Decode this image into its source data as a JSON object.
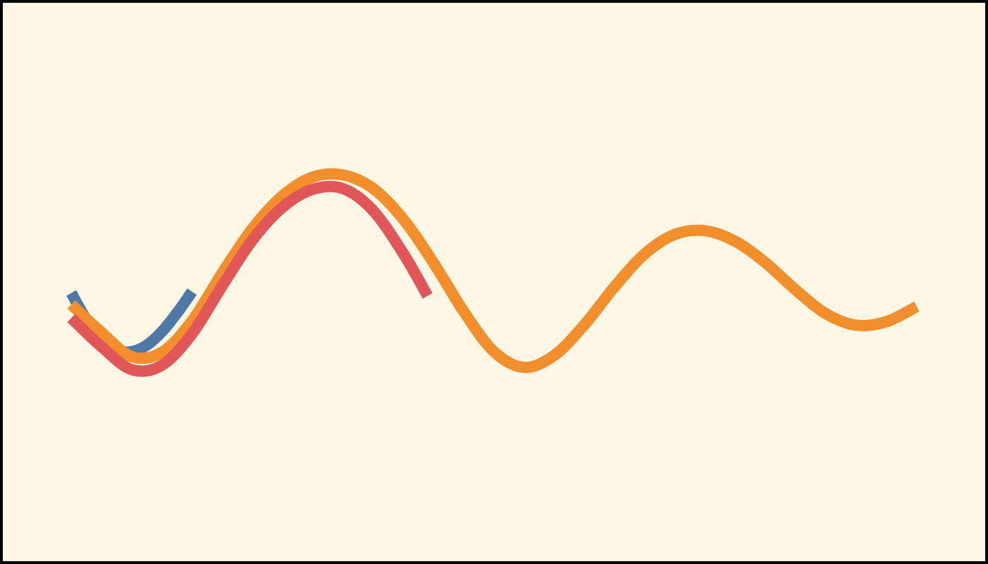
{
  "chart_data": {
    "type": "line",
    "background_color": "#fff7e6",
    "frame_color": "#000000",
    "grid": false,
    "legend": "none",
    "series": [
      {
        "color": "#4e79a7",
        "x": [
          0.0,
          0.25,
          0.5,
          0.75,
          1.0,
          1.25,
          1.5,
          1.75,
          2.0
        ],
        "y": [
          0.0,
          -0.37,
          -0.64,
          -0.8,
          -0.82,
          -0.73,
          -0.54,
          -0.28,
          0.02
        ]
      },
      {
        "color": "#f28e2b",
        "x": [
          0.0,
          0.5,
          1.0,
          1.5,
          2.0,
          2.5,
          3.0,
          3.5,
          4.0,
          4.5,
          5.0,
          5.5,
          6.0,
          6.5,
          7.0,
          7.5,
          8.0,
          8.5,
          9.0,
          9.5,
          10.0,
          10.5,
          11.0,
          11.5,
          12.0,
          12.5,
          13.0,
          13.5,
          14.0
        ],
        "y": [
          -0.16,
          -0.55,
          -0.89,
          -0.83,
          -0.39,
          0.28,
          0.9,
          1.36,
          1.62,
          1.65,
          1.46,
          1.03,
          0.42,
          -0.26,
          -0.82,
          -1.04,
          -0.87,
          -0.44,
          0.09,
          0.55,
          0.82,
          0.87,
          0.72,
          0.42,
          0.04,
          -0.29,
          -0.45,
          -0.4,
          -0.19
        ]
      },
      {
        "color": "#e15759",
        "x": [
          0.0,
          0.5,
          1.0,
          1.5,
          2.0,
          2.5,
          3.0,
          3.5,
          4.0,
          4.5,
          5.0,
          5.5,
          5.9
        ],
        "y": [
          -0.35,
          -0.75,
          -1.07,
          -1.01,
          -0.57,
          0.1,
          0.74,
          1.2,
          1.45,
          1.46,
          1.15,
          0.55,
          -0.04
        ]
      }
    ]
  }
}
